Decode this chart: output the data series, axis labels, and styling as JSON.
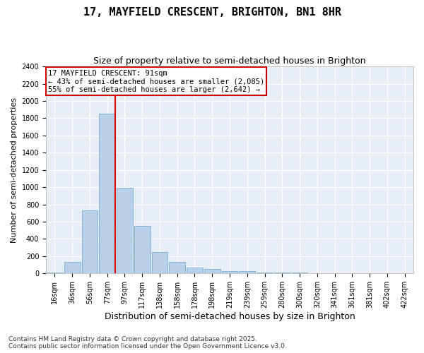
{
  "title": "17, MAYFIELD CRESCENT, BRIGHTON, BN1 8HR",
  "subtitle": "Size of property relative to semi-detached houses in Brighton",
  "xlabel": "Distribution of semi-detached houses by size in Brighton",
  "ylabel": "Number of semi-detached properties",
  "categories": [
    "16sqm",
    "36sqm",
    "56sqm",
    "77sqm",
    "97sqm",
    "117sqm",
    "138sqm",
    "158sqm",
    "178sqm",
    "198sqm",
    "219sqm",
    "239sqm",
    "259sqm",
    "280sqm",
    "300sqm",
    "320sqm",
    "341sqm",
    "361sqm",
    "381sqm",
    "402sqm",
    "422sqm"
  ],
  "values": [
    10,
    130,
    730,
    1850,
    990,
    550,
    250,
    130,
    70,
    55,
    30,
    25,
    15,
    10,
    8,
    5,
    3,
    2,
    1,
    1,
    0
  ],
  "bar_color": "#b8d0e8",
  "bar_edge_color": "#7aaed0",
  "background_color": "#e8eef5",
  "grid_color": "#ffffff",
  "vline_color": "#dd0000",
  "annotation_title": "17 MAYFIELD CRESCENT: 91sqm",
  "annotation_line2": "← 43% of semi-detached houses are smaller (2,085)",
  "annotation_line3": "55% of semi-detached houses are larger (2,642) →",
  "annotation_box_color": "#cc0000",
  "ylim": [
    0,
    2400
  ],
  "yticks": [
    0,
    200,
    400,
    600,
    800,
    1000,
    1200,
    1400,
    1600,
    1800,
    2000,
    2200,
    2400
  ],
  "footnote": "Contains HM Land Registry data © Crown copyright and database right 2025.\nContains public sector information licensed under the Open Government Licence v3.0.",
  "title_fontsize": 11,
  "subtitle_fontsize": 9,
  "xlabel_fontsize": 9,
  "ylabel_fontsize": 8,
  "tick_fontsize": 7,
  "annotation_fontsize": 7.5,
  "footnote_fontsize": 6.5
}
